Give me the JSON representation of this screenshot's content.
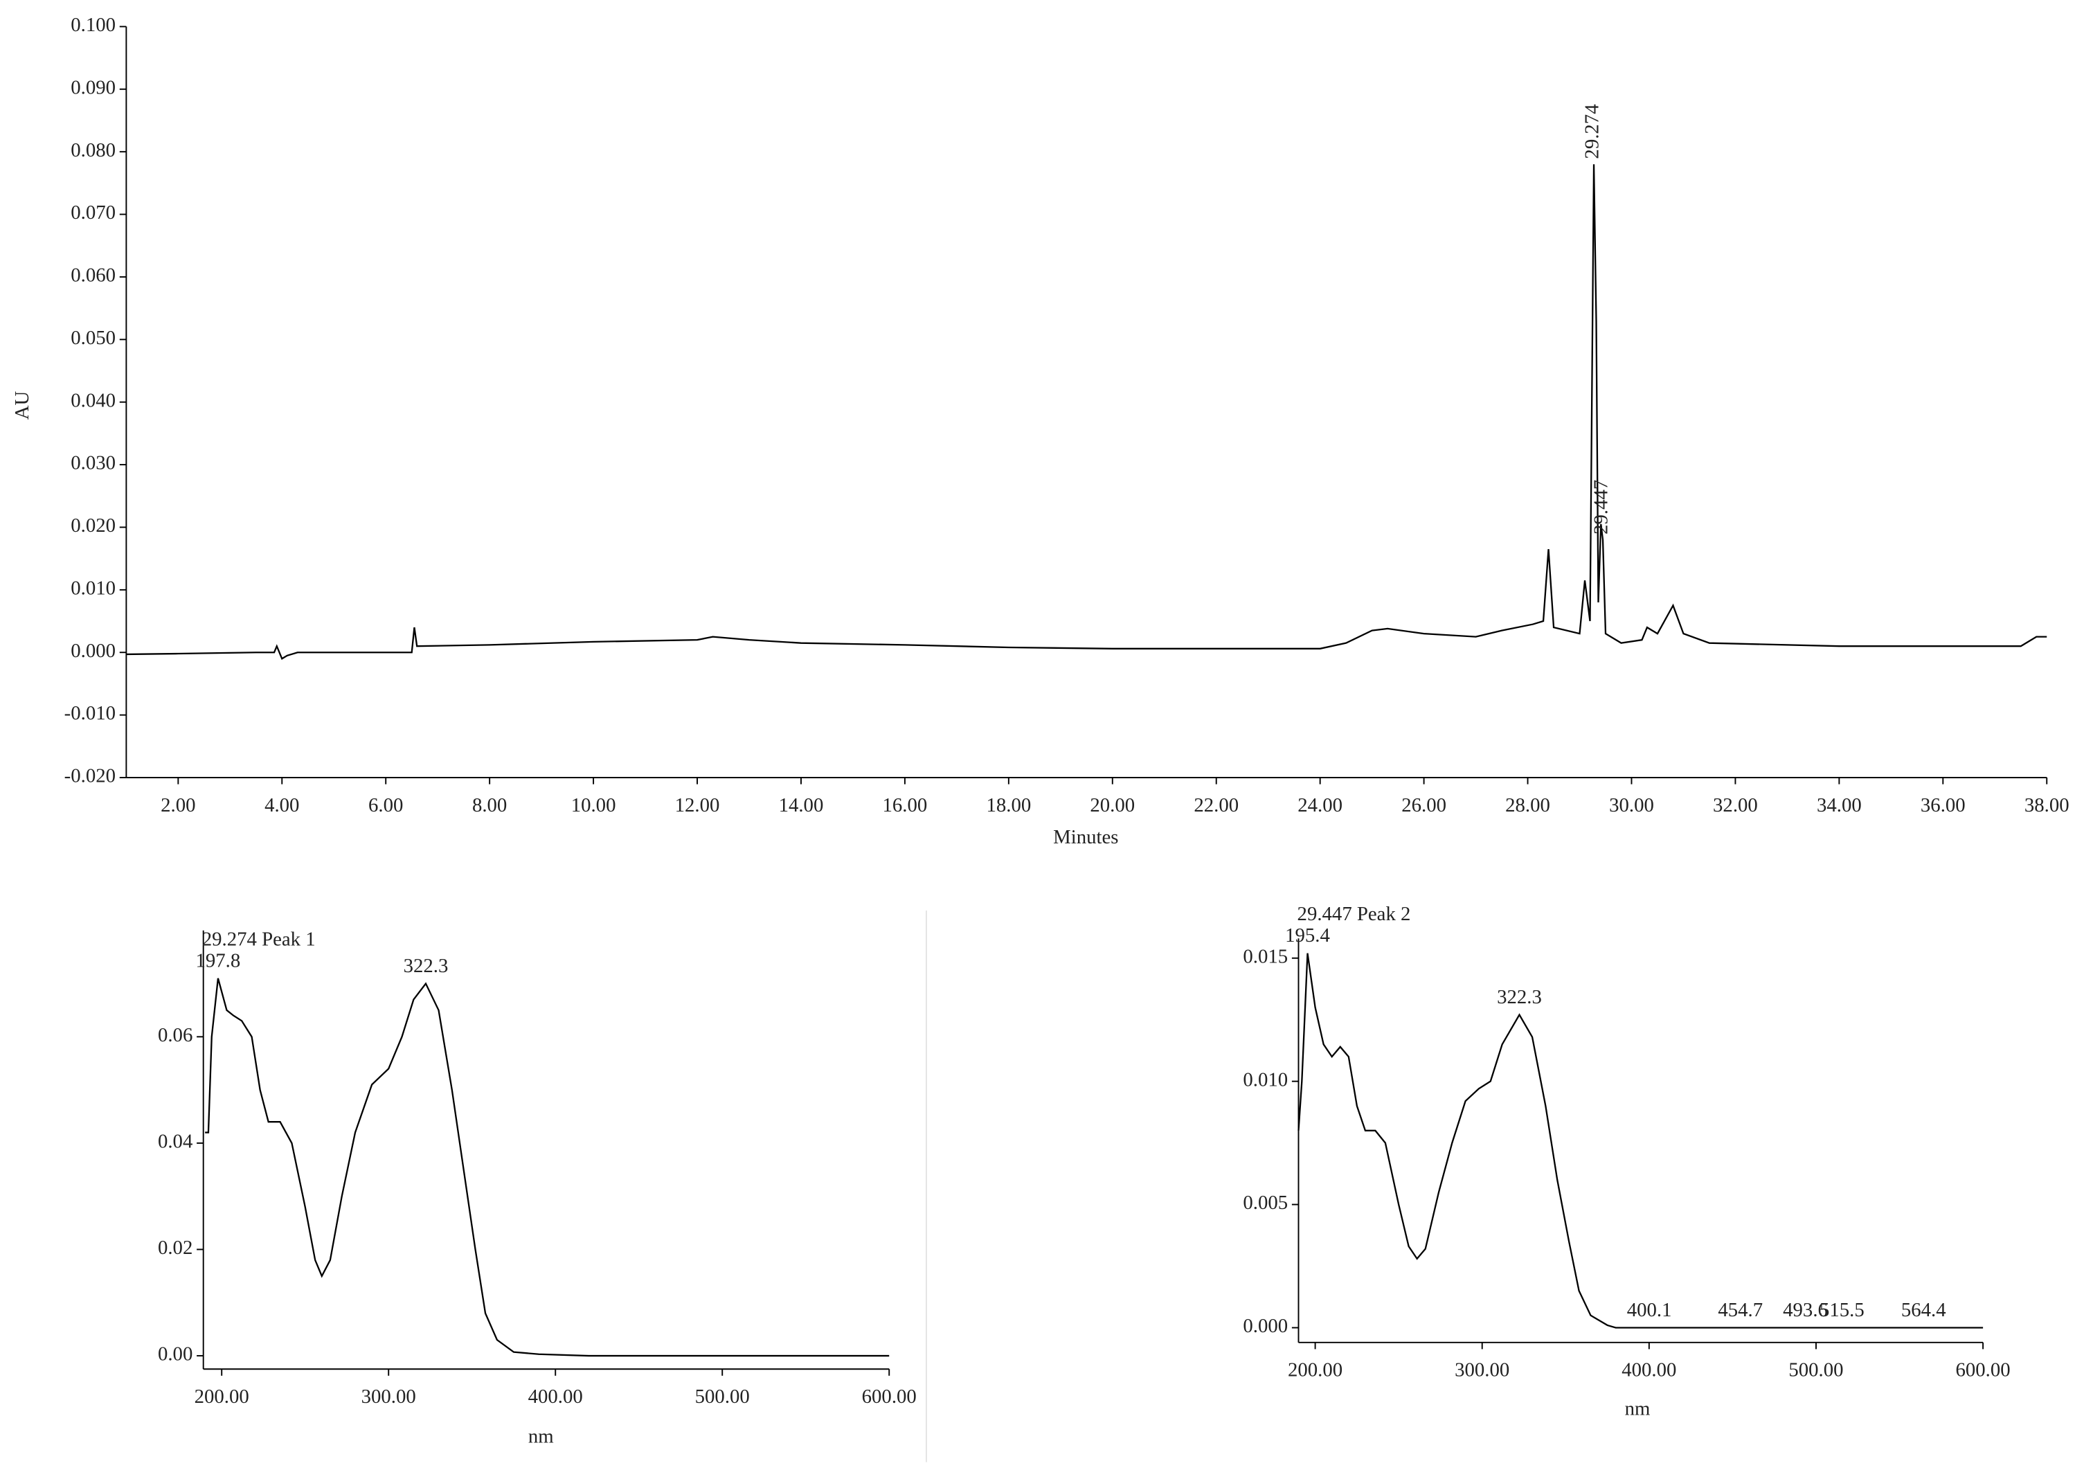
{
  "chart_data": [
    {
      "type": "line",
      "ylabel": "AU",
      "xlabel": "Minutes",
      "xlim": [
        1,
        38
      ],
      "ylim": [
        -0.02,
        0.1
      ],
      "xticks": [
        {
          "value": 2,
          "label": "2.00"
        },
        {
          "value": 4,
          "label": "4.00"
        },
        {
          "value": 6,
          "label": "6.00"
        },
        {
          "value": 8,
          "label": "8.00"
        },
        {
          "value": 10,
          "label": "10.00"
        },
        {
          "value": 12,
          "label": "12.00"
        },
        {
          "value": 14,
          "label": "14.00"
        },
        {
          "value": 16,
          "label": "16.00"
        },
        {
          "value": 18,
          "label": "18.00"
        },
        {
          "value": 20,
          "label": "20.00"
        },
        {
          "value": 22,
          "label": "22.00"
        },
        {
          "value": 24,
          "label": "24.00"
        },
        {
          "value": 26,
          "label": "26.00"
        },
        {
          "value": 28,
          "label": "28.00"
        },
        {
          "value": 30,
          "label": "30.00"
        },
        {
          "value": 32,
          "label": "32.00"
        },
        {
          "value": 34,
          "label": "34.00"
        },
        {
          "value": 36,
          "label": "36.00"
        },
        {
          "value": 38,
          "label": "38.00"
        }
      ],
      "yticks": [
        {
          "value": -0.02,
          "label": "-0.020"
        },
        {
          "value": -0.01,
          "label": "-0.010"
        },
        {
          "value": 0,
          "label": "0.000"
        },
        {
          "value": 0.01,
          "label": "0.010"
        },
        {
          "value": 0.02,
          "label": "0.020"
        },
        {
          "value": 0.03,
          "label": "0.030"
        },
        {
          "value": 0.04,
          "label": "0.040"
        },
        {
          "value": 0.05,
          "label": "0.050"
        },
        {
          "value": 0.06,
          "label": "0.060"
        },
        {
          "value": 0.07,
          "label": "0.070"
        },
        {
          "value": 0.08,
          "label": "0.080"
        },
        {
          "value": 0.09,
          "label": "0.090"
        },
        {
          "value": 0.1,
          "label": "0.100"
        }
      ],
      "x": [
        1.0,
        2.0,
        3.5,
        3.85,
        3.9,
        4.0,
        4.1,
        4.3,
        6.5,
        6.55,
        6.6,
        8,
        10,
        12,
        12.3,
        13,
        14,
        16,
        18,
        20,
        24,
        24.5,
        25.0,
        25.3,
        26,
        27,
        27.5,
        28.1,
        28.3,
        28.4,
        28.5,
        29.0,
        29.1,
        29.2,
        29.274,
        29.32,
        29.36,
        29.41,
        29.447,
        29.5,
        29.8,
        30.2,
        30.3,
        30.5,
        30.8,
        31.0,
        31.5,
        34,
        37.5,
        37.8,
        38
      ],
      "values": [
        -0.0003,
        -0.0002,
        0.0,
        0.0,
        0.001,
        -0.001,
        -0.0005,
        0.0,
        0.0,
        0.004,
        0.001,
        0.0012,
        0.0017,
        0.002,
        0.0025,
        0.002,
        0.0015,
        0.0012,
        0.0008,
        0.0006,
        0.0006,
        0.0015,
        0.0035,
        0.0038,
        0.003,
        0.0025,
        0.0035,
        0.0045,
        0.005,
        0.0165,
        0.004,
        0.003,
        0.0115,
        0.005,
        0.078,
        0.053,
        0.008,
        0.0205,
        0.018,
        0.003,
        0.0015,
        0.002,
        0.004,
        0.003,
        0.0075,
        0.003,
        0.0015,
        0.001,
        0.001,
        0.0025,
        0.0025
      ],
      "peak_labels": [
        29.274,
        29.447
      ]
    },
    {
      "type": "line",
      "title": "29.274 Peak 1",
      "xlabel": "nm",
      "xlim": [
        189,
        600
      ],
      "ylim": [
        -0.0025,
        0.08
      ],
      "xticks": [
        {
          "value": 200,
          "label": "200.00"
        },
        {
          "value": 300,
          "label": "300.00"
        },
        {
          "value": 400,
          "label": "400.00"
        },
        {
          "value": 500,
          "label": "500.00"
        },
        {
          "value": 600,
          "label": "600.00"
        }
      ],
      "yticks": [
        {
          "value": 0,
          "label": "0.00"
        },
        {
          "value": 0.02,
          "label": "0.02"
        },
        {
          "value": 0.04,
          "label": "0.04"
        },
        {
          "value": 0.06,
          "label": "0.06"
        }
      ],
      "x": [
        190,
        192,
        194,
        197.8,
        203,
        207,
        212,
        218,
        223,
        228,
        235,
        242,
        250,
        256,
        260,
        265,
        272,
        280,
        290,
        300,
        308,
        315,
        322.3,
        330,
        338,
        345,
        352,
        358,
        365,
        375,
        390,
        420,
        600
      ],
      "values": [
        0.042,
        0.042,
        0.06,
        0.071,
        0.065,
        0.064,
        0.063,
        0.06,
        0.05,
        0.044,
        0.044,
        0.04,
        0.028,
        0.018,
        0.015,
        0.018,
        0.03,
        0.042,
        0.051,
        0.054,
        0.06,
        0.067,
        0.07,
        0.065,
        0.05,
        0.035,
        0.02,
        0.008,
        0.003,
        0.0007,
        0.0003,
        0,
        0
      ],
      "peak_labels": [
        197.8,
        322.3
      ]
    },
    {
      "type": "line",
      "title": "29.447 Peak 2",
      "xlabel": "nm",
      "xlim": [
        190,
        600
      ],
      "ylim": [
        -0.0006,
        0.0158
      ],
      "xticks": [
        {
          "value": 200,
          "label": "200.00"
        },
        {
          "value": 300,
          "label": "300.00"
        },
        {
          "value": 400,
          "label": "400.00"
        },
        {
          "value": 500,
          "label": "500.00"
        },
        {
          "value": 600,
          "label": "600.00"
        }
      ],
      "yticks": [
        {
          "value": 0,
          "label": "0.000"
        },
        {
          "value": 0.005,
          "label": "0.005"
        },
        {
          "value": 0.01,
          "label": "0.010"
        },
        {
          "value": 0.015,
          "label": "0.015"
        }
      ],
      "x": [
        190,
        192,
        195.4,
        200,
        205,
        210,
        215,
        220,
        225,
        230,
        236,
        242,
        250,
        256,
        261,
        266,
        274,
        282,
        290,
        298,
        305,
        312,
        322.3,
        330,
        338,
        345,
        352,
        358,
        365,
        375,
        380,
        600
      ],
      "values": [
        0.008,
        0.01,
        0.0152,
        0.013,
        0.0115,
        0.011,
        0.0114,
        0.011,
        0.009,
        0.008,
        0.008,
        0.0075,
        0.005,
        0.0033,
        0.0028,
        0.0032,
        0.0055,
        0.0075,
        0.0092,
        0.0097,
        0.01,
        0.0115,
        0.0127,
        0.0118,
        0.009,
        0.006,
        0.0035,
        0.0015,
        0.0005,
        0.0001,
        0,
        0
      ],
      "peak_labels": [
        195.4,
        322.3,
        400.1,
        454.7,
        493.6,
        515.5,
        564.4
      ]
    }
  ]
}
